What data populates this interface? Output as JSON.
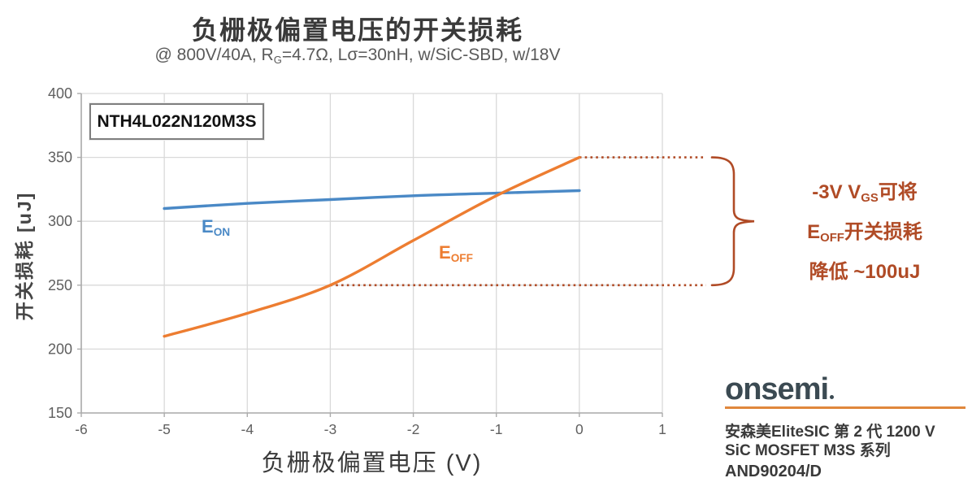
{
  "header": {
    "title": "负栅极偏置电压的开关损耗",
    "subtitle_parts": [
      "@ 800V/40A, R",
      "G",
      "=4.7Ω, Lσ=30nH, w/SiC-SBD, w/18V"
    ]
  },
  "chart_data": {
    "type": "line",
    "title": "负栅极偏置电压的开关损耗",
    "subtitle": "@ 800V/40A, RG=4.7Ω, Lσ=30nH, w/SiC-SBD, w/18V",
    "xlabel": "负栅极偏置电压 (V)",
    "ylabel": "开关损耗 [uJ]",
    "xlim": [
      -6,
      1
    ],
    "ylim": [
      150,
      400
    ],
    "x_ticks": [
      -6,
      -5,
      -4,
      -3,
      -2,
      -1,
      0,
      1
    ],
    "y_ticks": [
      150,
      200,
      250,
      300,
      350,
      400
    ],
    "grid": true,
    "legend_position": "inline-labels",
    "device_label": "NTH4L022N120M3S",
    "x": [
      -5,
      -4,
      -3,
      -2,
      -1,
      0
    ],
    "series": [
      {
        "name": "E_ON",
        "label_main": "E",
        "label_sub": "ON",
        "color": "#4a89c6",
        "values": [
          310,
          314,
          317,
          320,
          322,
          324
        ]
      },
      {
        "name": "E_OFF",
        "label_main": "E",
        "label_sub": "OFF",
        "color": "#ed7d31",
        "values": [
          210,
          228,
          250,
          285,
          320,
          350
        ]
      }
    ],
    "reference_lines": [
      {
        "y": 350,
        "from_x": 0,
        "style": "dotted"
      },
      {
        "y": 250,
        "from_x": -3,
        "style": "dotted"
      }
    ]
  },
  "annotation": {
    "color": "#b04b26",
    "line1": [
      "-3V V",
      "GS",
      "可将"
    ],
    "line2": [
      "E",
      "OFF",
      "开关损耗"
    ],
    "line3": "降低 ~100uJ"
  },
  "footer": {
    "brand": "onsemi",
    "accent_color": "#e0873c",
    "line1": "安森美EliteSIC 第 2 代 1200 V",
    "line2": "SiC MOSFET M3S 系列",
    "doc": "AND90204/D"
  },
  "style_colors": {
    "grid": "#d9d9d9",
    "axis": "#ababab",
    "tick_text": "#5f5f5f",
    "title_text": "#3a3a3a"
  }
}
